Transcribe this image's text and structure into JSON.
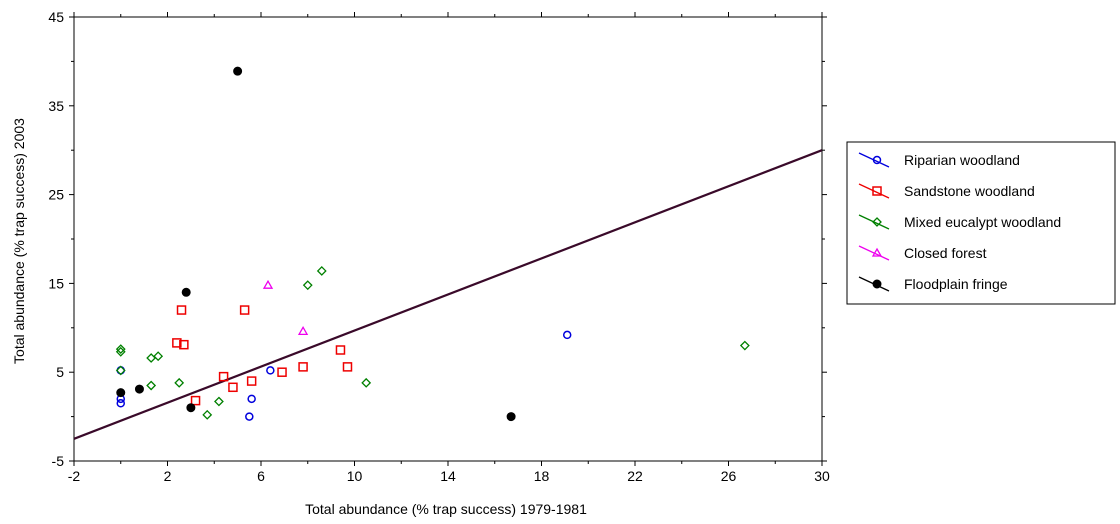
{
  "chart_data": {
    "type": "scatter",
    "xlabel": "Total abundance (% trap success) 1979-1981",
    "ylabel": "Total abundance (% trap success) 2003",
    "xlim": [
      -2,
      30
    ],
    "ylim": [
      -5,
      45
    ],
    "xticks": [
      -2,
      2,
      6,
      10,
      14,
      18,
      22,
      26,
      30
    ],
    "yticks": [
      -5,
      5,
      15,
      25,
      35,
      45
    ],
    "grid": false,
    "legend_position": "right",
    "reference_line": {
      "x": [
        -2,
        30
      ],
      "y": [
        -2.5,
        30
      ],
      "color": "#3a0a2a"
    },
    "series": [
      {
        "name": "Riparian woodland",
        "marker": "circle",
        "color": "#0000dd",
        "points": [
          [
            0,
            5.2
          ],
          [
            0,
            1.5
          ],
          [
            0,
            2.0
          ],
          [
            5.5,
            0
          ],
          [
            5.6,
            2
          ],
          [
            6.4,
            5.2
          ],
          [
            19.1,
            9.2
          ]
        ]
      },
      {
        "name": "Sandstone woodland",
        "marker": "square",
        "color": "#ee0000",
        "points": [
          [
            2.4,
            8.3
          ],
          [
            2.6,
            12
          ],
          [
            2.7,
            8.1
          ],
          [
            3.2,
            1.8
          ],
          [
            4.4,
            4.5
          ],
          [
            4.8,
            3.3
          ],
          [
            5.3,
            12
          ],
          [
            5.6,
            4
          ],
          [
            6.9,
            5
          ],
          [
            7.8,
            5.6
          ],
          [
            9.4,
            7.5
          ],
          [
            9.7,
            5.6
          ]
        ]
      },
      {
        "name": "Mixed eucalypt woodland",
        "marker": "diamond",
        "color": "#008000",
        "points": [
          [
            0,
            7.3
          ],
          [
            0,
            7.6
          ],
          [
            0,
            5.2
          ],
          [
            1.3,
            6.6
          ],
          [
            1.6,
            6.8
          ],
          [
            1.3,
            3.5
          ],
          [
            2.5,
            3.8
          ],
          [
            3.7,
            0.2
          ],
          [
            4.2,
            1.7
          ],
          [
            8.0,
            14.8
          ],
          [
            8.6,
            16.4
          ],
          [
            10.5,
            3.8
          ],
          [
            26.7,
            8.0
          ]
        ]
      },
      {
        "name": "Closed forest",
        "marker": "triangle",
        "color": "#ee00ee",
        "points": [
          [
            6.3,
            14.8
          ],
          [
            7.8,
            9.6
          ]
        ]
      },
      {
        "name": "Floodplain fringe",
        "marker": "filled-circle",
        "color": "#000000",
        "points": [
          [
            5.0,
            38.9
          ],
          [
            2.8,
            14
          ],
          [
            0,
            2.7
          ],
          [
            0.8,
            3.1
          ],
          [
            3.0,
            1.0
          ],
          [
            16.7,
            0
          ]
        ]
      }
    ]
  }
}
